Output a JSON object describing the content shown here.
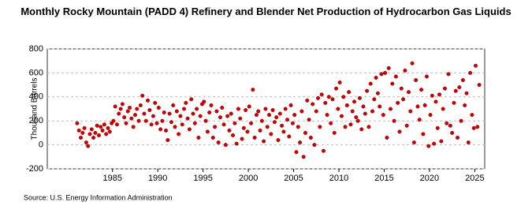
{
  "chart_data": {
    "type": "scatter",
    "title": "Monthly Rocky Mountain (PADD 4) Refinery and Blender Net Production of Hydrocarbon Gas Liquids",
    "y_label": "Thousand Barrels",
    "source": "Source: U.S. Energy Information Administration",
    "color": "#cc0000",
    "grid": true,
    "xlim": [
      1977.8,
      2026.1
    ],
    "xticks": [
      1985,
      1990,
      1995,
      2000,
      2005,
      2010,
      2015,
      2020,
      2025
    ],
    "ylim": [
      -200,
      800
    ],
    "yticks": [
      -200,
      0,
      200,
      400,
      600,
      800
    ],
    "x": [
      1981.1,
      1981.3,
      1981.5,
      1981.7,
      1981.9,
      1982.1,
      1982.3,
      1982.5,
      1982.7,
      1982.9,
      1983.1,
      1983.3,
      1983.5,
      1983.7,
      1983.9,
      1984.1,
      1984.3,
      1984.5,
      1984.7,
      1984.9,
      1985.1,
      1985.3,
      1985.5,
      1985.7,
      1985.9,
      1986.1,
      1986.3,
      1986.5,
      1986.7,
      1986.9,
      1987.1,
      1987.3,
      1987.5,
      1987.7,
      1987.9,
      1988.1,
      1988.3,
      1988.5,
      1988.7,
      1988.9,
      1989.1,
      1989.3,
      1989.5,
      1989.7,
      1989.9,
      1990.1,
      1990.3,
      1990.5,
      1990.7,
      1990.9,
      1991.1,
      1991.3,
      1991.5,
      1991.7,
      1991.9,
      1992.1,
      1992.3,
      1992.5,
      1992.7,
      1992.9,
      1993.1,
      1993.3,
      1993.5,
      1993.7,
      1993.9,
      1994.1,
      1994.3,
      1994.5,
      1994.7,
      1994.9,
      1995.1,
      1995.3,
      1995.5,
      1995.7,
      1995.9,
      1996.1,
      1996.3,
      1996.5,
      1996.7,
      1996.9,
      1997.1,
      1997.3,
      1997.5,
      1997.7,
      1997.9,
      1998.1,
      1998.3,
      1998.5,
      1998.7,
      1998.9,
      1999.1,
      1999.3,
      1999.5,
      1999.7,
      1999.9,
      2000.1,
      2000.3,
      2000.5,
      2000.7,
      2000.9,
      2001.1,
      2001.3,
      2001.5,
      2001.7,
      2001.9,
      2002.1,
      2002.3,
      2002.5,
      2002.7,
      2002.9,
      2003.1,
      2003.3,
      2003.5,
      2003.7,
      2003.9,
      2004.1,
      2004.3,
      2004.5,
      2004.7,
      2004.9,
      2005.1,
      2005.3,
      2005.5,
      2005.7,
      2005.9,
      2006.1,
      2006.3,
      2006.5,
      2006.7,
      2006.9,
      2007.1,
      2007.3,
      2007.5,
      2007.7,
      2007.9,
      2008.1,
      2008.3,
      2008.5,
      2008.7,
      2008.9,
      2009.1,
      2009.3,
      2009.5,
      2009.7,
      2009.9,
      2010.1,
      2010.3,
      2010.5,
      2010.7,
      2010.9,
      2011.1,
      2011.3,
      2011.5,
      2011.7,
      2011.9,
      2012.1,
      2012.3,
      2012.5,
      2012.7,
      2012.9,
      2013.1,
      2013.3,
      2013.5,
      2013.7,
      2013.9,
      2014.1,
      2014.3,
      2014.5,
      2014.7,
      2014.9,
      2015.1,
      2015.3,
      2015.5,
      2015.7,
      2015.9,
      2016.1,
      2016.3,
      2016.5,
      2016.7,
      2016.9,
      2017.1,
      2017.3,
      2017.5,
      2017.7,
      2017.9,
      2018.1,
      2018.3,
      2018.5,
      2018.7,
      2018.9,
      2019.1,
      2019.3,
      2019.5,
      2019.7,
      2019.9,
      2020.1,
      2020.3,
      2020.5,
      2020.7,
      2020.9,
      2021.1,
      2021.3,
      2021.5,
      2021.7,
      2021.9,
      2022.1,
      2022.3,
      2022.5,
      2022.7,
      2022.9,
      2023.1,
      2023.3,
      2023.5,
      2023.7,
      2023.9,
      2024.1,
      2024.3,
      2024.5,
      2024.7,
      2024.9,
      2025.1,
      2025.3,
      2025.5
    ],
    "values": [
      180,
      120,
      60,
      100,
      140,
      20,
      -10,
      90,
      130,
      60,
      100,
      160,
      80,
      150,
      120,
      170,
      90,
      140,
      110,
      180,
      200,
      320,
      170,
      260,
      300,
      340,
      230,
      180,
      280,
      310,
      220,
      150,
      250,
      300,
      200,
      330,
      410,
      260,
      200,
      370,
      290,
      170,
      240,
      350,
      180,
      310,
      130,
      200,
      270,
      120,
      40,
      260,
      190,
      330,
      150,
      280,
      90,
      240,
      170,
      300,
      350,
      220,
      130,
      380,
      260,
      180,
      300,
      60,
      240,
      340,
      360,
      200,
      110,
      270,
      330,
      60,
      150,
      280,
      20,
      230,
      310,
      170,
      0,
      240,
      120,
      260,
      80,
      180,
      10,
      300,
      220,
      50,
      140,
      290,
      110,
      320,
      180,
      460,
      60,
      250,
      280,
      120,
      200,
      30,
      300,
      150,
      250,
      90,
      290,
      190,
      230,
      40,
      260,
      160,
      110,
      300,
      210,
      70,
      330,
      180,
      250,
      -60,
      150,
      20,
      280,
      -100,
      100,
      370,
      210,
      60,
      340,
      0,
      280,
      390,
      150,
      420,
      -50,
      350,
      250,
      400,
      180,
      380,
      100,
      470,
      300,
      520,
      240,
      400,
      150,
      330,
      440,
      170,
      280,
      360,
      230,
      200,
      390,
      130,
      320,
      260,
      450,
      150,
      510,
      280,
      380,
      560,
      430,
      320,
      590,
      250,
      600,
      60,
      640,
      300,
      510,
      200,
      570,
      350,
      110,
      470,
      380,
      620,
      160,
      440,
      280,
      680,
      20,
      540,
      320,
      210,
      460,
      90,
      330,
      570,
      -10,
      250,
      410,
      10,
      360,
      140,
      420,
      30,
      300,
      470,
      180,
      590,
      160,
      100,
      350,
      450,
      60,
      480,
      200,
      540,
      330,
      430,
      20,
      600,
      250,
      140,
      660,
      150,
      500
    ]
  }
}
